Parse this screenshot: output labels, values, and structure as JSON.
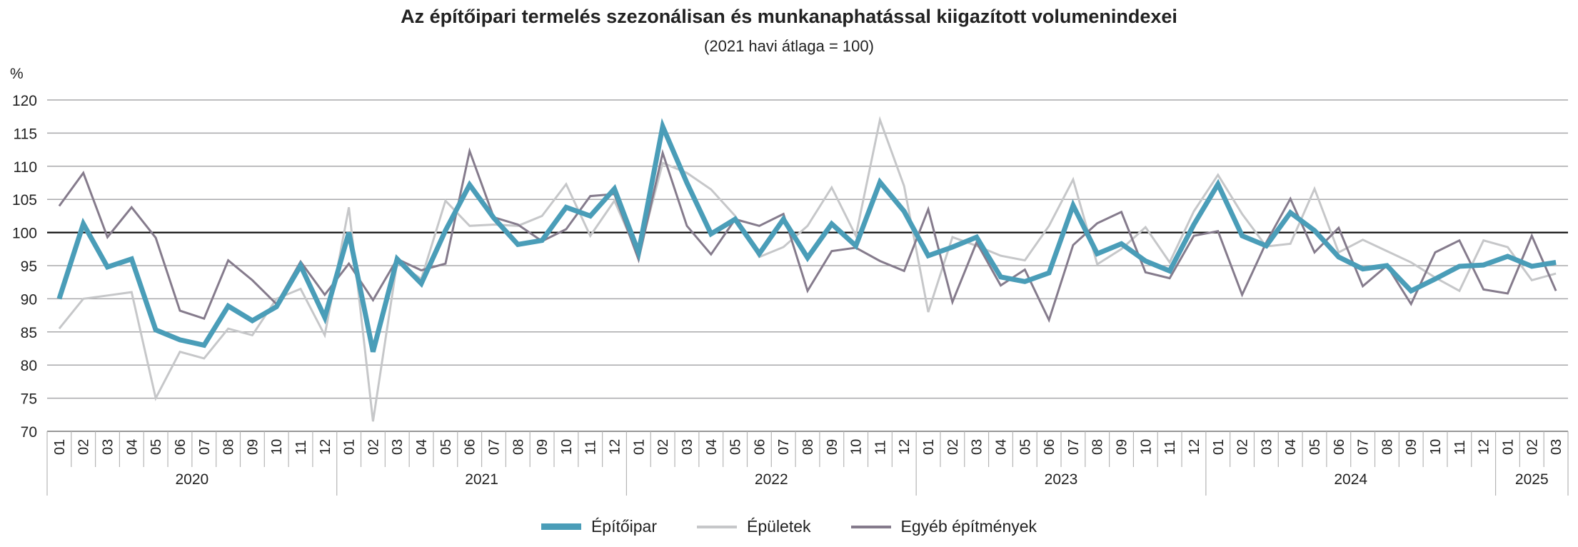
{
  "chart_data": {
    "type": "line",
    "title": "Az építőipari termelés szezonálisan és munkanaphatással kiigazított volumenindexei",
    "subtitle": "(2021 havi átlaga = 100)",
    "ylabel": "%",
    "ylim": [
      70,
      120
    ],
    "yticks": [
      70,
      75,
      80,
      85,
      90,
      95,
      100,
      105,
      110,
      115,
      120
    ],
    "reference_line": 100,
    "grid": true,
    "legend_position": "bottom",
    "years": [
      {
        "label": "2020",
        "months": 12
      },
      {
        "label": "2021",
        "months": 12
      },
      {
        "label": "2022",
        "months": 12
      },
      {
        "label": "2023",
        "months": 12
      },
      {
        "label": "2024",
        "months": 12
      },
      {
        "label": "2025",
        "months": 3
      }
    ],
    "months": [
      "01",
      "02",
      "03",
      "04",
      "05",
      "06",
      "07",
      "08",
      "09",
      "10",
      "11",
      "12",
      "01",
      "02",
      "03",
      "04",
      "05",
      "06",
      "07",
      "08",
      "09",
      "10",
      "11",
      "12",
      "01",
      "02",
      "03",
      "04",
      "05",
      "06",
      "07",
      "08",
      "09",
      "10",
      "11",
      "12",
      "01",
      "02",
      "03",
      "04",
      "05",
      "06",
      "07",
      "08",
      "09",
      "10",
      "11",
      "12",
      "01",
      "02",
      "03",
      "04",
      "05",
      "06",
      "07",
      "08",
      "09",
      "10",
      "11",
      "12",
      "01",
      "02",
      "03"
    ],
    "series": [
      {
        "name": "Épületek",
        "color": "#c6c7c9",
        "width": 3,
        "values": [
          85.5,
          90.0,
          90.5,
          91.0,
          75.0,
          82.0,
          81.0,
          85.5,
          84.5,
          90.0,
          91.5,
          84.5,
          103.8,
          71.5,
          95.5,
          93.0,
          104.8,
          101.0,
          101.2,
          101.0,
          102.5,
          107.3,
          99.5,
          104.8,
          96.5,
          110.5,
          109.0,
          106.5,
          102.5,
          96.3,
          97.8,
          101.0,
          106.8,
          99.5,
          117.0,
          107.0,
          88.0,
          99.3,
          98.0,
          96.5,
          95.8,
          101.0,
          108.0,
          95.2,
          97.5,
          100.8,
          95.5,
          103.2,
          108.7,
          102.8,
          97.9,
          98.3,
          106.6,
          97.0,
          98.9,
          97.2,
          95.5,
          93.2,
          91.2,
          98.8,
          97.8,
          92.8,
          93.8
        ]
      },
      {
        "name": "Egyéb építmények",
        "color": "#857b8c",
        "width": 3,
        "values": [
          104.0,
          109.0,
          99.3,
          103.8,
          99.2,
          88.2,
          87.0,
          95.8,
          92.8,
          89.2,
          95.6,
          90.6,
          95.3,
          89.8,
          96.0,
          94.3,
          95.3,
          112.3,
          102.3,
          101.2,
          98.7,
          100.5,
          105.5,
          105.8,
          95.9,
          112.0,
          101.0,
          96.7,
          102.0,
          101.0,
          102.8,
          91.2,
          97.2,
          97.7,
          95.7,
          94.2,
          103.5,
          89.5,
          98.5,
          92.0,
          94.4,
          86.8,
          98.1,
          101.4,
          103.1,
          94.0,
          93.1,
          99.5,
          100.2,
          90.6,
          98.5,
          105.1,
          97.0,
          100.7,
          91.9,
          95.0,
          89.2,
          97.0,
          98.8,
          91.4,
          90.8,
          99.5,
          91.2
        ]
      },
      {
        "name": "Építőipar",
        "color": "#4a9db8",
        "width": 7,
        "values": [
          90.0,
          101.3,
          94.8,
          96.0,
          85.3,
          83.8,
          83.0,
          88.9,
          86.7,
          88.8,
          95.0,
          87.2,
          100.0,
          82.0,
          96.0,
          92.3,
          100.3,
          107.2,
          102.2,
          98.2,
          98.8,
          103.8,
          102.5,
          106.6,
          97.0,
          116.0,
          107.5,
          99.8,
          102.0,
          96.8,
          102.0,
          96.2,
          101.3,
          98.0,
          107.6,
          103.2,
          96.5,
          97.8,
          99.3,
          93.3,
          92.6,
          93.9,
          104.1,
          96.8,
          98.3,
          95.7,
          94.2,
          101.2,
          107.3,
          99.5,
          98.0,
          103.0,
          100.3,
          96.3,
          94.5,
          95.0,
          91.2,
          93.0,
          94.9,
          95.1,
          96.4,
          94.9,
          95.5
        ]
      }
    ]
  },
  "legend": [
    {
      "name": "Építőipar",
      "color": "#4a9db8",
      "width": 9
    },
    {
      "name": "Épületek",
      "color": "#c6c7c9",
      "width": 4
    },
    {
      "name": "Egyéb építmények",
      "color": "#857b8c",
      "width": 4
    }
  ]
}
